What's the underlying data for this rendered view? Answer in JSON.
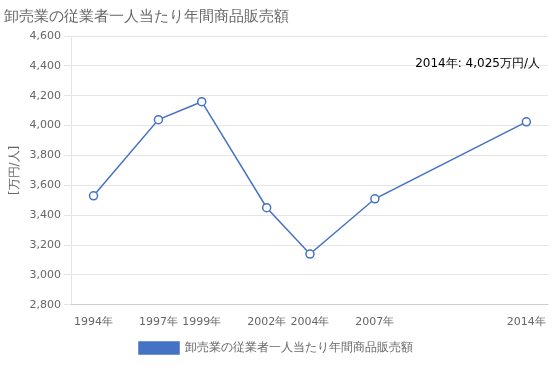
{
  "chart_data": {
    "type": "line",
    "title": "卸売業の従業者一人当たり年間商品販売額",
    "ylabel": "[万円/人]",
    "annotation": "2014年: 4,025万円/人",
    "x": [
      1994,
      1997,
      1999,
      2002,
      2004,
      2007,
      2014
    ],
    "series": [
      {
        "name": "卸売業の従業者一人当たり年間商品販売額",
        "color": "#4472C4",
        "marker": "circle",
        "values": [
          3530,
          4040,
          4160,
          3450,
          3140,
          3510,
          4025
        ]
      }
    ],
    "xlim": [
      1993,
      2015
    ],
    "xticks": [
      {
        "value": 1994,
        "label": "1994年"
      },
      {
        "value": 1997,
        "label": "1997年"
      },
      {
        "value": 1999,
        "label": "1999年"
      },
      {
        "value": 2002,
        "label": "2002年"
      },
      {
        "value": 2004,
        "label": "2004年"
      },
      {
        "value": 2007,
        "label": "2007年"
      },
      {
        "value": 2014,
        "label": "2014年"
      }
    ],
    "ylim": [
      2800,
      4600
    ],
    "yticks": [
      {
        "value": 2800,
        "label": "2,800"
      },
      {
        "value": 3000,
        "label": "3,000"
      },
      {
        "value": 3200,
        "label": "3,200"
      },
      {
        "value": 3400,
        "label": "3,400"
      },
      {
        "value": 3600,
        "label": "3,600"
      },
      {
        "value": 3800,
        "label": "3,800"
      },
      {
        "value": 4000,
        "label": "4,000"
      },
      {
        "value": 4200,
        "label": "4,200"
      },
      {
        "value": 4400,
        "label": "4,400"
      },
      {
        "value": 4600,
        "label": "4,600"
      }
    ],
    "grid": true,
    "legend": "bottom"
  }
}
